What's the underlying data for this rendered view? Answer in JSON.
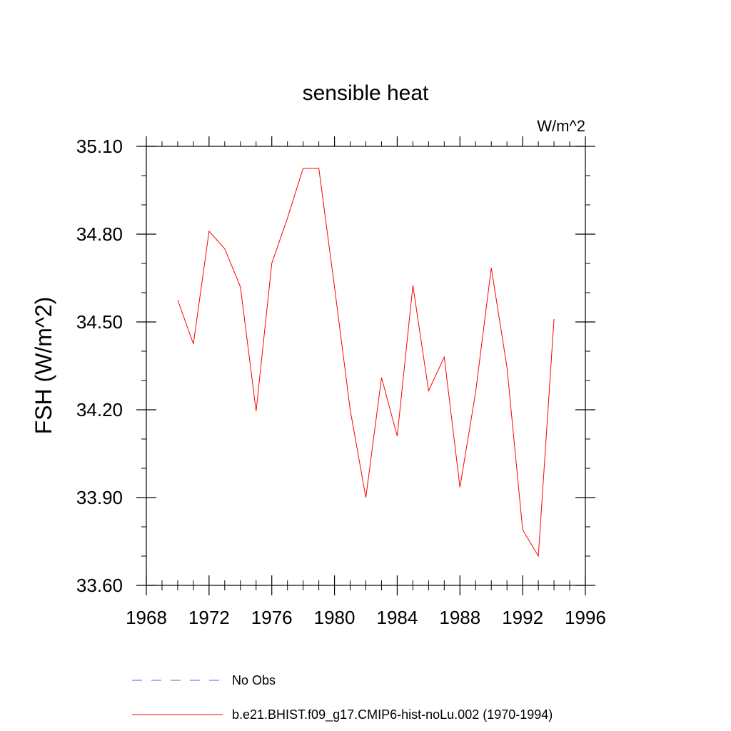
{
  "chart_data": {
    "type": "line",
    "title": "sensible heat",
    "units_label": "W/m^2",
    "ylabel": "FSH  (W/m^2)",
    "xlabel": "",
    "xlim": [
      1968,
      1996
    ],
    "ylim": [
      33.6,
      35.1
    ],
    "x_major_ticks": [
      1968,
      1972,
      1976,
      1980,
      1984,
      1988,
      1992,
      1996
    ],
    "x_tick_labels": [
      "1968",
      "1972",
      "1976",
      "1980",
      "1984",
      "1988",
      "1992",
      "1996"
    ],
    "y_major_ticks": [
      33.6,
      33.9,
      34.2,
      34.5,
      34.8,
      35.1
    ],
    "y_tick_labels": [
      "33.60",
      "33.90",
      "34.20",
      "34.50",
      "34.80",
      "35.10"
    ],
    "grid": false,
    "legend_position": "bottom",
    "series": [
      {
        "name": "b.e21.BHIST.f09_g17.CMIP6-hist-noLu.002 (1970-1994)",
        "color": "#ff0000",
        "style": "solid",
        "x": [
          1970,
          1971,
          1972,
          1973,
          1974,
          1975,
          1976,
          1977,
          1978,
          1979,
          1980,
          1981,
          1982,
          1983,
          1984,
          1985,
          1986,
          1987,
          1988,
          1989,
          1990,
          1991,
          1992,
          1993,
          1994
        ],
        "values": [
          34.575,
          34.425,
          34.81,
          34.75,
          34.62,
          34.195,
          34.7,
          34.855,
          35.025,
          35.025,
          34.62,
          34.2,
          33.9,
          34.31,
          34.11,
          34.625,
          34.265,
          34.38,
          33.935,
          34.26,
          34.685,
          34.345,
          33.79,
          33.7,
          34.51
        ]
      }
    ],
    "legend": [
      {
        "label": "No Obs",
        "color": "#6a5acd",
        "style": "dashed"
      },
      {
        "label": "b.e21.BHIST.f09_g17.CMIP6-hist-noLu.002 (1970-1994)",
        "color": "#ff0000",
        "style": "solid"
      }
    ]
  }
}
